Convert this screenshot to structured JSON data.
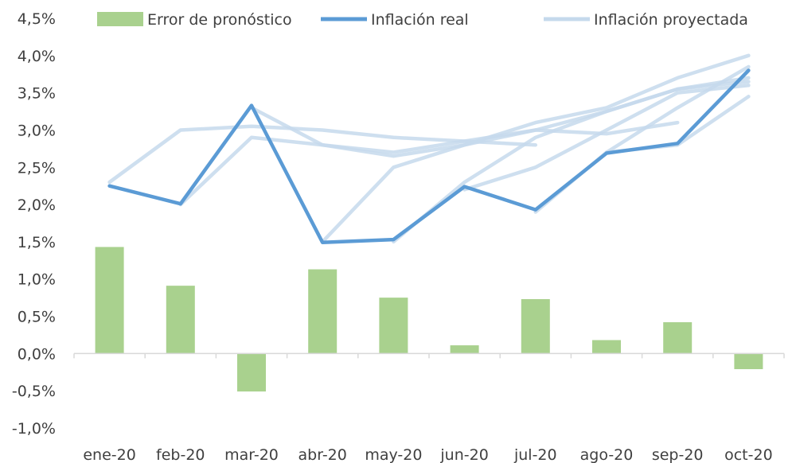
{
  "chart_data": {
    "type": "bar+line",
    "categories": [
      "ene-20",
      "feb-20",
      "mar-20",
      "abr-20",
      "may-20",
      "jun-20",
      "jul-20",
      "ago-20",
      "sep-20",
      "oct-20"
    ],
    "ylim": [
      -1.0,
      4.5
    ],
    "yticks": [
      -1.0,
      -0.5,
      0.0,
      0.5,
      1.0,
      1.5,
      2.0,
      2.5,
      3.0,
      3.5,
      4.0,
      4.5
    ],
    "ytick_labels": [
      "-1,0%",
      "-0,5%",
      "0,0%",
      "0,5%",
      "1,0%",
      "1,5%",
      "2,0%",
      "2,5%",
      "3,0%",
      "3,5%",
      "4,0%",
      "4,5%"
    ],
    "legend_position": "top",
    "legend": [
      {
        "label": "Error de pronóstico",
        "kind": "bar",
        "color": "#a9d18e"
      },
      {
        "label": "Inflación real",
        "kind": "line",
        "color": "#5b9bd5"
      },
      {
        "label": "Inflación proyectada",
        "kind": "line",
        "color": "#c5d9ec"
      }
    ],
    "bars": {
      "name": "Error de pronóstico",
      "color": "#a9d18e",
      "values": [
        1.43,
        0.91,
        -0.51,
        1.13,
        0.75,
        0.11,
        0.73,
        0.18,
        0.42,
        -0.21
      ]
    },
    "real": {
      "name": "Inflación real",
      "color": "#5b9bd5",
      "values": [
        2.25,
        2.01,
        3.33,
        1.49,
        1.53,
        2.24,
        1.93,
        2.69,
        2.82,
        3.8
      ]
    },
    "projected": {
      "name": "Inflación proyectada",
      "color": "#c5d9ec",
      "series": [
        {
          "start": 0,
          "values": [
            2.3,
            3.0,
            3.05,
            3.0,
            2.9,
            2.85,
            2.8
          ]
        },
        {
          "start": 1,
          "values": [
            2.0,
            2.9,
            2.8,
            2.7,
            2.85,
            3.0,
            2.95,
            3.1
          ]
        },
        {
          "start": 2,
          "values": [
            3.3,
            2.8,
            2.65,
            2.8,
            3.1,
            3.3,
            3.7,
            4.0
          ]
        },
        {
          "start": 3,
          "values": [
            1.5,
            2.5,
            2.8,
            3.0,
            3.25,
            3.55,
            3.65
          ]
        },
        {
          "start": 4,
          "values": [
            1.5,
            2.3,
            2.9,
            3.25,
            3.55,
            3.7
          ]
        },
        {
          "start": 5,
          "values": [
            2.2,
            2.5,
            3.0,
            3.5,
            3.6
          ]
        },
        {
          "start": 6,
          "values": [
            1.9,
            2.7,
            3.3,
            3.85
          ]
        },
        {
          "start": 7,
          "values": [
            2.7,
            2.8,
            3.45
          ]
        }
      ]
    }
  }
}
